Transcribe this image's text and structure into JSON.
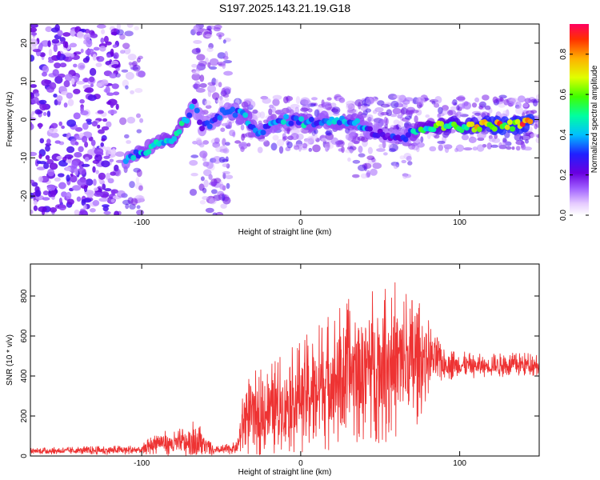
{
  "title": "S197.2025.143.21.19.G18",
  "chart_data": [
    {
      "type": "heatmap",
      "xlabel": "Height of straight line (km)",
      "ylabel": "Frequency (Hz)",
      "xlim": [
        -170,
        150
      ],
      "ylim": [
        -25,
        25
      ],
      "x_ticks": [
        -100,
        0,
        100
      ],
      "y_ticks": [
        -20,
        -10,
        0,
        10,
        20
      ],
      "colorbar": {
        "label": "Normalized spectral amplitude",
        "range": [
          0,
          0.95
        ],
        "ticks": [
          0.0,
          0.2,
          0.4,
          0.6,
          0.8
        ]
      },
      "ridge": [
        {
          "x": -110,
          "y": -10.5,
          "a": 0.4
        },
        {
          "x": -100,
          "y": -8.5,
          "a": 0.45
        },
        {
          "x": -90,
          "y": -6.5,
          "a": 0.45
        },
        {
          "x": -80,
          "y": -5,
          "a": 0.5
        },
        {
          "x": -72,
          "y": 0,
          "a": 0.5
        },
        {
          "x": -67,
          "y": 4.5,
          "a": 0.35
        },
        {
          "x": -62,
          "y": -2,
          "a": 0.3
        },
        {
          "x": -55,
          "y": -0.5,
          "a": 0.35
        },
        {
          "x": -45,
          "y": 3,
          "a": 0.35
        },
        {
          "x": -35,
          "y": 0.5,
          "a": 0.45
        },
        {
          "x": -25,
          "y": -3.5,
          "a": 0.4
        },
        {
          "x": -15,
          "y": -0.5,
          "a": 0.4
        },
        {
          "x": -5,
          "y": 0,
          "a": 0.45
        },
        {
          "x": 5,
          "y": -1,
          "a": 0.45
        },
        {
          "x": 15,
          "y": 0,
          "a": 0.4
        },
        {
          "x": 25,
          "y": -0.5,
          "a": 0.45
        },
        {
          "x": 35,
          "y": -0.5,
          "a": 0.45
        },
        {
          "x": 45,
          "y": -3,
          "a": 0.35
        },
        {
          "x": 55,
          "y": -4,
          "a": 0.3
        },
        {
          "x": 65,
          "y": -5,
          "a": 0.35
        },
        {
          "x": 75,
          "y": -2,
          "a": 0.55
        },
        {
          "x": 85,
          "y": -2,
          "a": 0.65
        },
        {
          "x": 95,
          "y": -1.5,
          "a": 0.7
        },
        {
          "x": 105,
          "y": -2,
          "a": 0.75
        },
        {
          "x": 115,
          "y": -1.5,
          "a": 0.8
        },
        {
          "x": 125,
          "y": -1.5,
          "a": 0.9
        },
        {
          "x": 135,
          "y": -1.5,
          "a": 0.85
        },
        {
          "x": 145,
          "y": -0.5,
          "a": 0.9
        }
      ]
    },
    {
      "type": "line",
      "xlabel": "Height of straight line (km)",
      "ylabel": "SNR (10 * v/v)",
      "xlim": [
        -170,
        150
      ],
      "ylim": [
        0,
        960
      ],
      "x_ticks": [
        -100,
        0,
        100
      ],
      "y_ticks": [
        0,
        200,
        400,
        600,
        800
      ],
      "color": "#ee3333",
      "envelope": [
        {
          "x": -170,
          "base": 25,
          "spread": 15
        },
        {
          "x": -100,
          "base": 30,
          "spread": 25
        },
        {
          "x": -90,
          "base": 70,
          "spread": 60
        },
        {
          "x": -80,
          "base": 60,
          "spread": 60
        },
        {
          "x": -65,
          "base": 80,
          "spread": 110
        },
        {
          "x": -55,
          "base": 25,
          "spread": 20
        },
        {
          "x": -40,
          "base": 40,
          "spread": 30
        },
        {
          "x": -35,
          "base": 200,
          "spread": 200
        },
        {
          "x": -20,
          "base": 230,
          "spread": 230
        },
        {
          "x": 0,
          "base": 300,
          "spread": 280
        },
        {
          "x": 20,
          "base": 380,
          "spread": 360
        },
        {
          "x": 40,
          "base": 450,
          "spread": 380
        },
        {
          "x": 60,
          "base": 480,
          "spread": 420
        },
        {
          "x": 70,
          "base": 460,
          "spread": 380
        },
        {
          "x": 80,
          "base": 500,
          "spread": 200
        },
        {
          "x": 90,
          "base": 460,
          "spread": 80
        },
        {
          "x": 110,
          "base": 450,
          "spread": 60
        },
        {
          "x": 150,
          "base": 460,
          "spread": 60
        }
      ]
    }
  ]
}
